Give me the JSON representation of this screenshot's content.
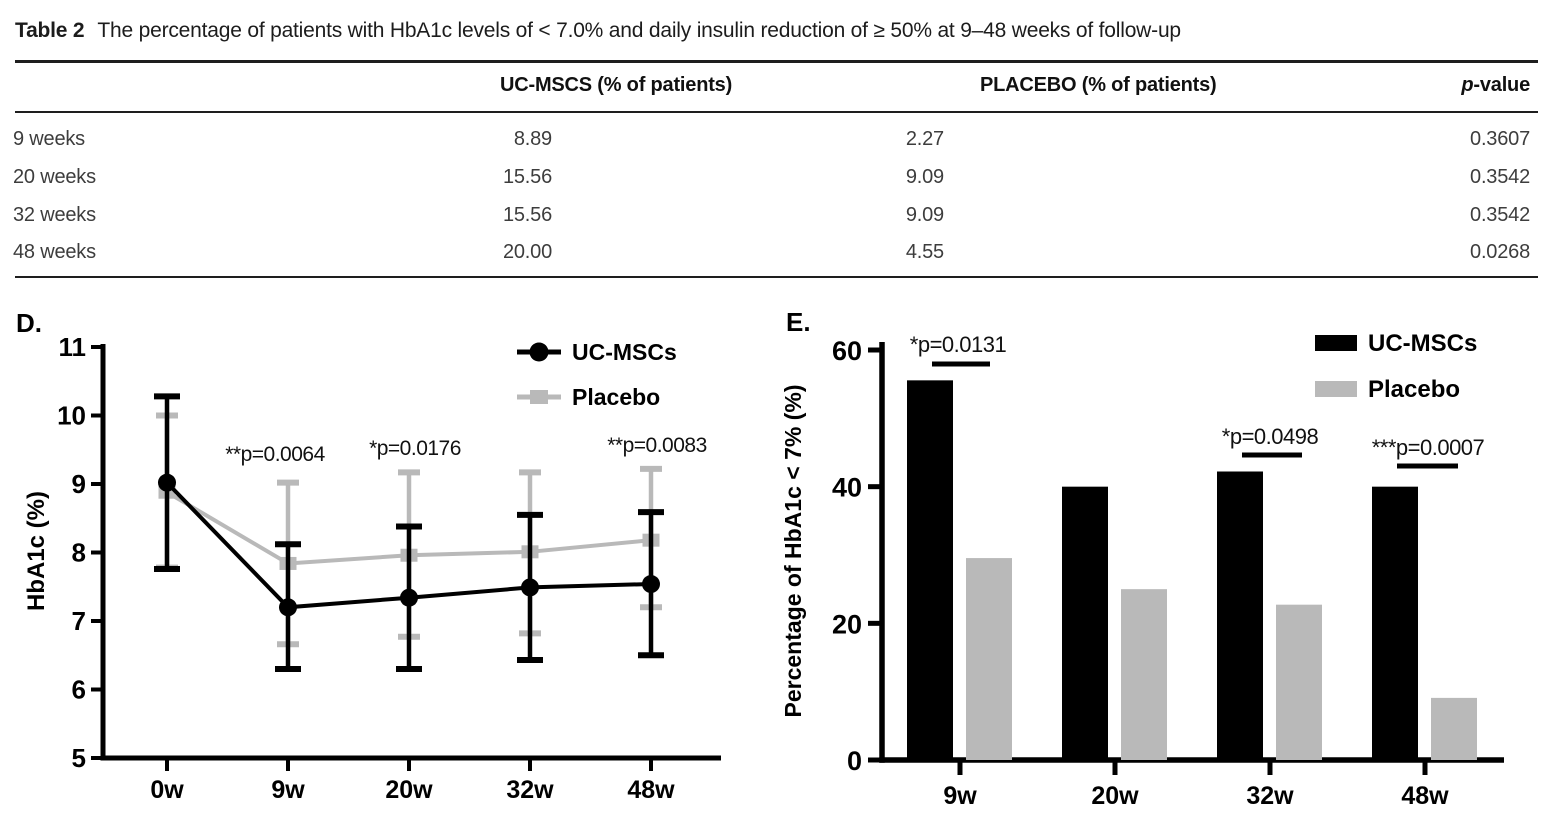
{
  "table": {
    "title_label": "Table 2",
    "title_text": "The percentage of patients with HbA1c levels of < 7.0% and daily insulin reduction of ≥ 50% at 9–48 weeks of follow-up",
    "columns": {
      "group": "",
      "uc": "UC-MSCS (% of patients)",
      "placebo": "PLACEBO (% of patients)",
      "p_italic": "p",
      "p_rest": "-value"
    },
    "rows": [
      {
        "label": "9 weeks",
        "uc": "8.89",
        "placebo": "2.27",
        "p": "0.3607"
      },
      {
        "label": "20 weeks",
        "uc": "15.56",
        "placebo": "9.09",
        "p": "0.3542"
      },
      {
        "label": "32 weeks",
        "uc": "15.56",
        "placebo": "9.09",
        "p": "0.3542"
      },
      {
        "label": "48 weeks",
        "uc": "20.00",
        "placebo": "4.55",
        "p": "0.0268"
      }
    ]
  },
  "colors": {
    "black": "#000000",
    "gray": "#b9b9b9",
    "table_text": "#3d3d3d"
  },
  "chart_data": [
    {
      "id": "panel-d",
      "panel_label": "D.",
      "type": "line",
      "title": "",
      "xlabel": "",
      "ylabel": "HbA1c (%)",
      "ylim": [
        5,
        11
      ],
      "yticks": [
        5,
        6,
        7,
        8,
        9,
        10,
        11
      ],
      "grid": false,
      "legend_position": "top-right",
      "categories": [
        "0w",
        "9w",
        "20w",
        "32w",
        "48w"
      ],
      "series": [
        {
          "name": "Placebo",
          "color": "#b9b9b9",
          "marker": "square",
          "values": [
            8.88,
            7.84,
            7.96,
            8.01,
            8.18
          ],
          "err_hi": [
            10.0,
            9.02,
            9.17,
            9.17,
            9.22
          ],
          "err_lo": [
            7.78,
            6.66,
            6.77,
            6.82,
            7.2
          ]
        },
        {
          "name": "UC-MSCs",
          "color": "#000000",
          "marker": "circle",
          "values": [
            9.02,
            7.2,
            7.34,
            7.49,
            7.54
          ],
          "err_hi": [
            10.28,
            8.12,
            8.38,
            8.55,
            8.59
          ],
          "err_lo": [
            7.76,
            6.3,
            6.3,
            6.43,
            6.5
          ]
        }
      ],
      "legend_order": [
        "UC-MSCs",
        "Placebo"
      ],
      "annotations": [
        {
          "text": "**p=0.0064",
          "at": "9w"
        },
        {
          "text": "*p=0.0176",
          "at": "20w"
        },
        {
          "text": "**p=0.0083",
          "at": "48w"
        }
      ]
    },
    {
      "id": "panel-e",
      "panel_label": "E.",
      "type": "bar",
      "title": "",
      "xlabel": "",
      "ylabel": "Percentage of HbA1c < 7% (%)",
      "ylim": [
        0,
        60
      ],
      "yticks": [
        0,
        20,
        40,
        60
      ],
      "grid": false,
      "legend_position": "top-right",
      "categories": [
        "9w",
        "20w",
        "32w",
        "48w"
      ],
      "series": [
        {
          "name": "UC-MSCs",
          "color": "#000000",
          "values": [
            55.56,
            40.0,
            42.22,
            40.0
          ]
        },
        {
          "name": "Placebo",
          "color": "#b9b9b9",
          "values": [
            29.55,
            25.0,
            22.73,
            9.09
          ]
        }
      ],
      "annotations": [
        {
          "text": "*p=0.0131",
          "at": "9w"
        },
        {
          "text": "*p=0.0498",
          "at": "32w"
        },
        {
          "text": "***p=0.0007",
          "at": "48w"
        }
      ]
    }
  ]
}
